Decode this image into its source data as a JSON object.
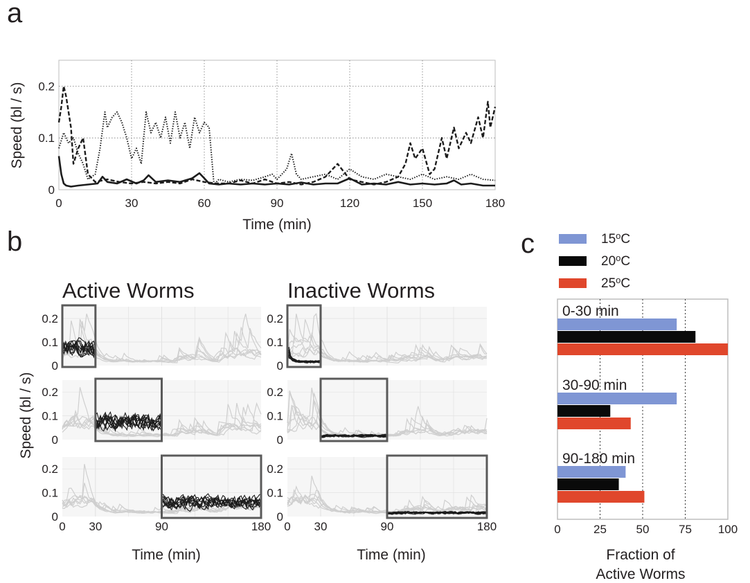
{
  "panels": {
    "a": "a",
    "b": "b",
    "c": "c"
  },
  "colors": {
    "c15": "#7f96d4",
    "c20": "#0a0a0a",
    "c25": "#e0472c",
    "faded": "#cfcfcf",
    "trace": "#1c1c1c",
    "box": "#5a5a5a",
    "bg": "#f6f6f6",
    "grid": "#777777"
  },
  "chart_data": [
    {
      "id": "a",
      "type": "line",
      "xlabel": "Time (min)",
      "ylabel": "Speed (bl / s)",
      "xlim": [
        0,
        180
      ],
      "ylim": [
        0,
        0.25
      ],
      "xticks": [
        0,
        30,
        60,
        90,
        120,
        150,
        180
      ],
      "yticks": [
        0,
        0.1,
        0.2
      ],
      "ytick_labels": [
        "0",
        "0.1",
        "0.2"
      ],
      "grid": true,
      "series": [
        {
          "style": "solid",
          "x": [
            0,
            1,
            2,
            3,
            5,
            8,
            12,
            16,
            18,
            20,
            24,
            28,
            32,
            35,
            37,
            40,
            45,
            50,
            55,
            58,
            60,
            62,
            66,
            70,
            75,
            80,
            85,
            90,
            95,
            100,
            105,
            110,
            115,
            120,
            125,
            130,
            135,
            140,
            145,
            150,
            155,
            160,
            163,
            166,
            170,
            175,
            180
          ],
          "y": [
            0.065,
            0.03,
            0.012,
            0.008,
            0.006,
            0.008,
            0.01,
            0.012,
            0.025,
            0.015,
            0.012,
            0.02,
            0.012,
            0.018,
            0.028,
            0.015,
            0.018,
            0.015,
            0.022,
            0.032,
            0.022,
            0.012,
            0.01,
            0.012,
            0.01,
            0.012,
            0.01,
            0.012,
            0.01,
            0.014,
            0.01,
            0.012,
            0.012,
            0.022,
            0.01,
            0.012,
            0.01,
            0.015,
            0.01,
            0.012,
            0.01,
            0.012,
            0.018,
            0.01,
            0.012,
            0.008,
            0.008
          ]
        },
        {
          "style": "dashed",
          "x": [
            0,
            1,
            2,
            3,
            4,
            5,
            6,
            8,
            10,
            12,
            15,
            20,
            25,
            30,
            35,
            40,
            45,
            50,
            55,
            60,
            65,
            70,
            75,
            80,
            85,
            90,
            95,
            100,
            105,
            110,
            113,
            115,
            120,
            125,
            130,
            135,
            140,
            143,
            145,
            147,
            150,
            153,
            155,
            158,
            160,
            163,
            165,
            168,
            170,
            173,
            175,
            177,
            178,
            180
          ],
          "y": [
            0.13,
            0.16,
            0.2,
            0.18,
            0.15,
            0.12,
            0.05,
            0.08,
            0.1,
            0.03,
            0.015,
            0.02,
            0.015,
            0.012,
            0.015,
            0.012,
            0.015,
            0.012,
            0.02,
            0.015,
            0.012,
            0.012,
            0.018,
            0.012,
            0.02,
            0.012,
            0.015,
            0.01,
            0.015,
            0.025,
            0.04,
            0.05,
            0.02,
            0.015,
            0.01,
            0.015,
            0.025,
            0.05,
            0.09,
            0.06,
            0.08,
            0.03,
            0.04,
            0.1,
            0.06,
            0.12,
            0.08,
            0.11,
            0.09,
            0.14,
            0.1,
            0.17,
            0.12,
            0.16
          ]
        },
        {
          "style": "dotted",
          "x": [
            0,
            2,
            4,
            6,
            8,
            10,
            12,
            15,
            17,
            19,
            20,
            22,
            24,
            26,
            28,
            30,
            32,
            34,
            36,
            38,
            40,
            42,
            44,
            46,
            48,
            50,
            52,
            54,
            56,
            58,
            60,
            62,
            64,
            66,
            70,
            75,
            80,
            85,
            88,
            90,
            92,
            94,
            96,
            98,
            100,
            105,
            110,
            115,
            120,
            125,
            130,
            135,
            140,
            145,
            150,
            155,
            160,
            165,
            170,
            175,
            180
          ],
          "y": [
            0.08,
            0.11,
            0.09,
            0.1,
            0.07,
            0.05,
            0.02,
            0.03,
            0.08,
            0.15,
            0.12,
            0.14,
            0.15,
            0.13,
            0.1,
            0.06,
            0.08,
            0.05,
            0.15,
            0.11,
            0.13,
            0.1,
            0.14,
            0.09,
            0.15,
            0.1,
            0.13,
            0.08,
            0.14,
            0.11,
            0.13,
            0.12,
            0.01,
            0.02,
            0.015,
            0.02,
            0.018,
            0.025,
            0.03,
            0.02,
            0.03,
            0.04,
            0.07,
            0.03,
            0.02,
            0.025,
            0.03,
            0.02,
            0.04,
            0.025,
            0.02,
            0.03,
            0.025,
            0.02,
            0.03,
            0.02,
            0.025,
            0.02,
            0.03,
            0.02,
            0.018
          ]
        }
      ]
    },
    {
      "id": "b",
      "type": "line",
      "xlabel": "Time (min)",
      "ylabel": "Speed (bl / s)",
      "xlim": [
        0,
        180
      ],
      "ylim": [
        0,
        0.25
      ],
      "xticks": [
        0,
        30,
        90,
        180
      ],
      "yticks": [
        0,
        0.1,
        0.2
      ],
      "ytick_labels": [
        "0",
        "0.1",
        "0.2"
      ],
      "grid": true,
      "columns": [
        "Active Worms",
        "Inactive Worms"
      ],
      "rows": [
        {
          "window": [
            0,
            30
          ]
        },
        {
          "window": [
            30,
            90
          ]
        },
        {
          "window": [
            90,
            180
          ]
        }
      ]
    },
    {
      "id": "c",
      "type": "bar",
      "orientation": "horizontal",
      "xlabel": "Fraction of Active Worms",
      "xlabel_lines": [
        "Fraction of",
        "Active Worms"
      ],
      "xlim": [
        0,
        100
      ],
      "xticks": [
        0,
        25,
        50,
        75,
        100
      ],
      "vlines": [
        25,
        50,
        75
      ],
      "categories": [
        "0-30 min",
        "30-90 min",
        "90-180 min"
      ],
      "series": [
        {
          "name": "15",
          "unit": "o",
          "suffix": "C",
          "color": "#7f96d4",
          "values": [
            70,
            70,
            40
          ]
        },
        {
          "name": "20",
          "unit": "o",
          "suffix": "C",
          "color": "#0a0a0a",
          "values": [
            81,
            31,
            36
          ]
        },
        {
          "name": "25",
          "unit": "o",
          "suffix": "C",
          "color": "#e0472c",
          "values": [
            100,
            43,
            51
          ]
        }
      ],
      "legend_position": "top"
    }
  ]
}
